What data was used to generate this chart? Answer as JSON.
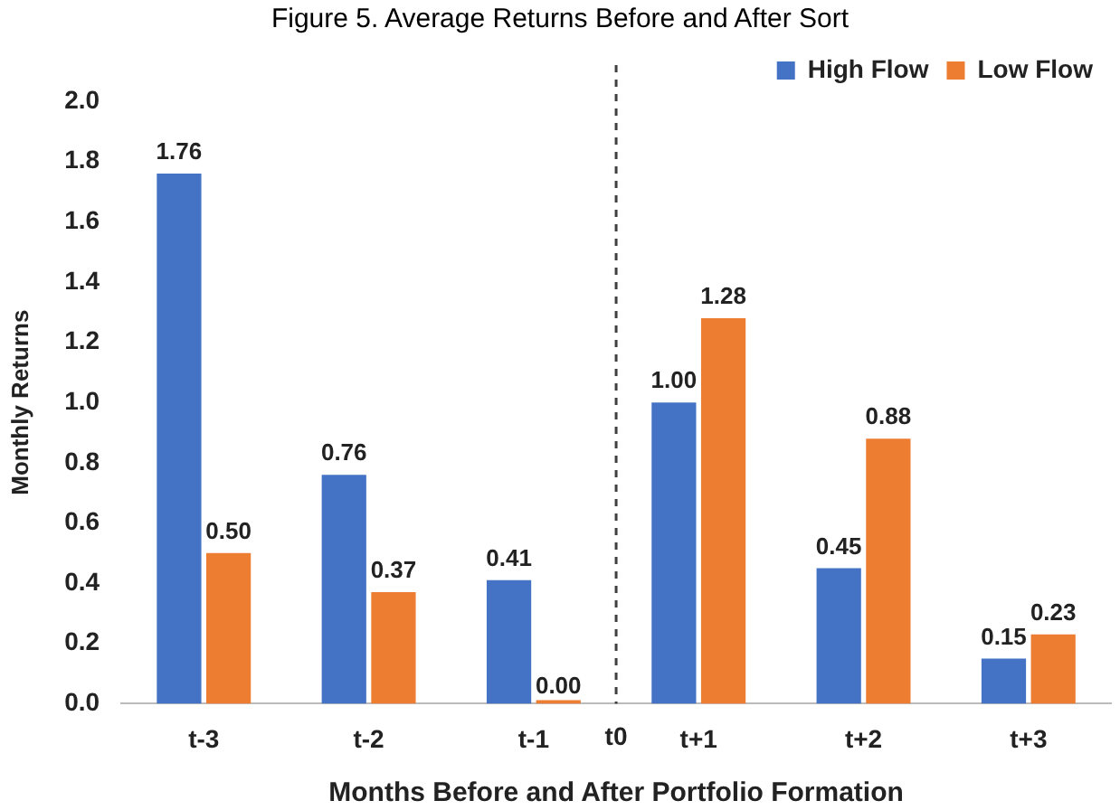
{
  "chart_data": {
    "type": "bar",
    "title": "Figure 5. Average Returns Before and After Sort",
    "xlabel": "Months Before and After Portfolio Formation",
    "ylabel": "Monthly Returns",
    "categories": [
      "t-3",
      "t-2",
      "t-1",
      "t+1",
      "t+2",
      "t+3"
    ],
    "series": [
      {
        "name": "High Flow",
        "color": "#4472c4",
        "values": [
          1.76,
          0.76,
          0.41,
          1.0,
          0.45,
          0.15
        ],
        "value_labels": [
          "1.76",
          "0.76",
          "0.41",
          "1.00",
          "0.45",
          "0.15"
        ]
      },
      {
        "name": "Low Flow",
        "color": "#ed7d31",
        "values": [
          0.5,
          0.37,
          0,
          1.28,
          0.88,
          0.23
        ],
        "value_labels": [
          "0.50",
          "0.37",
          "0.00",
          "1.28",
          "0.88",
          "0.23"
        ]
      }
    ],
    "ylim": [
      0,
      2
    ],
    "yticks": [
      {
        "value": 0,
        "label": "0.0"
      },
      {
        "value": 0.2,
        "label": "0.2"
      },
      {
        "value": 0.4,
        "label": "0.4"
      },
      {
        "value": 0.6,
        "label": "0.6"
      },
      {
        "value": 0.8,
        "label": "0.8"
      },
      {
        "value": 1,
        "label": "1.0"
      },
      {
        "value": 1.2,
        "label": "1.2"
      },
      {
        "value": 1.4,
        "label": "1.4"
      },
      {
        "value": 1.6,
        "label": "1.6"
      },
      {
        "value": 1.8,
        "label": "1.8"
      },
      {
        "value": 2,
        "label": "2.0"
      }
    ],
    "annotations": [
      "t0"
    ],
    "grid": false,
    "legend": "top right"
  }
}
